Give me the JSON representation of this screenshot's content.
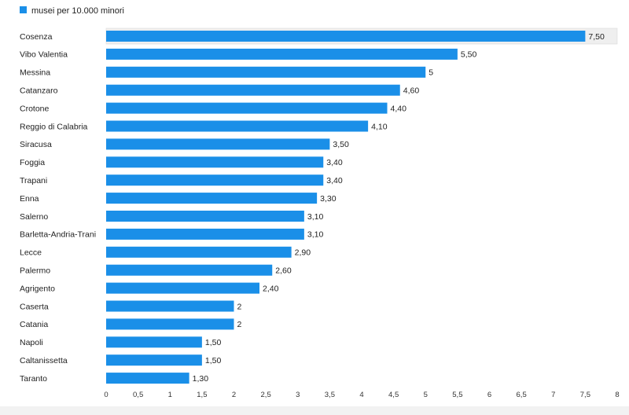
{
  "chart_data": {
    "type": "bar",
    "orientation": "horizontal",
    "categories": [
      "Cosenza",
      "Vibo Valentia",
      "Messina",
      "Catanzaro",
      "Crotone",
      "Reggio di Calabria",
      "Siracusa",
      "Foggia",
      "Trapani",
      "Enna",
      "Salerno",
      "Barletta-Andria-Trani",
      "Lecce",
      "Palermo",
      "Agrigento",
      "Caserta",
      "Catania",
      "Napoli",
      "Caltanissetta",
      "Taranto"
    ],
    "series": [
      {
        "name": "musei per 10.000 minori",
        "values": [
          7.5,
          5.5,
          5,
          4.6,
          4.4,
          4.1,
          3.5,
          3.4,
          3.4,
          3.3,
          3.1,
          3.1,
          2.9,
          2.6,
          2.4,
          2,
          2,
          1.5,
          1.5,
          1.3
        ],
        "value_labels": [
          "7,50",
          "5,50",
          "5",
          "4,60",
          "4,40",
          "4,10",
          "3,50",
          "3,40",
          "3,40",
          "3,30",
          "3,10",
          "3,10",
          "2,90",
          "2,60",
          "2,40",
          "2",
          "2",
          "1,50",
          "1,50",
          "1,30"
        ]
      }
    ],
    "xlim": [
      0,
      8
    ],
    "ticks": [
      "0",
      "0,5",
      "1",
      "1,5",
      "2",
      "2,5",
      "3",
      "3,5",
      "4",
      "4,5",
      "5",
      "5,5",
      "6",
      "6,5",
      "7",
      "7,5",
      "8"
    ],
    "legend_placement": "top-left",
    "grid": false,
    "colors": {
      "bar": "#1a8fe8",
      "highlight_row": "#efefef"
    },
    "highlighted_category": "Cosenza"
  }
}
